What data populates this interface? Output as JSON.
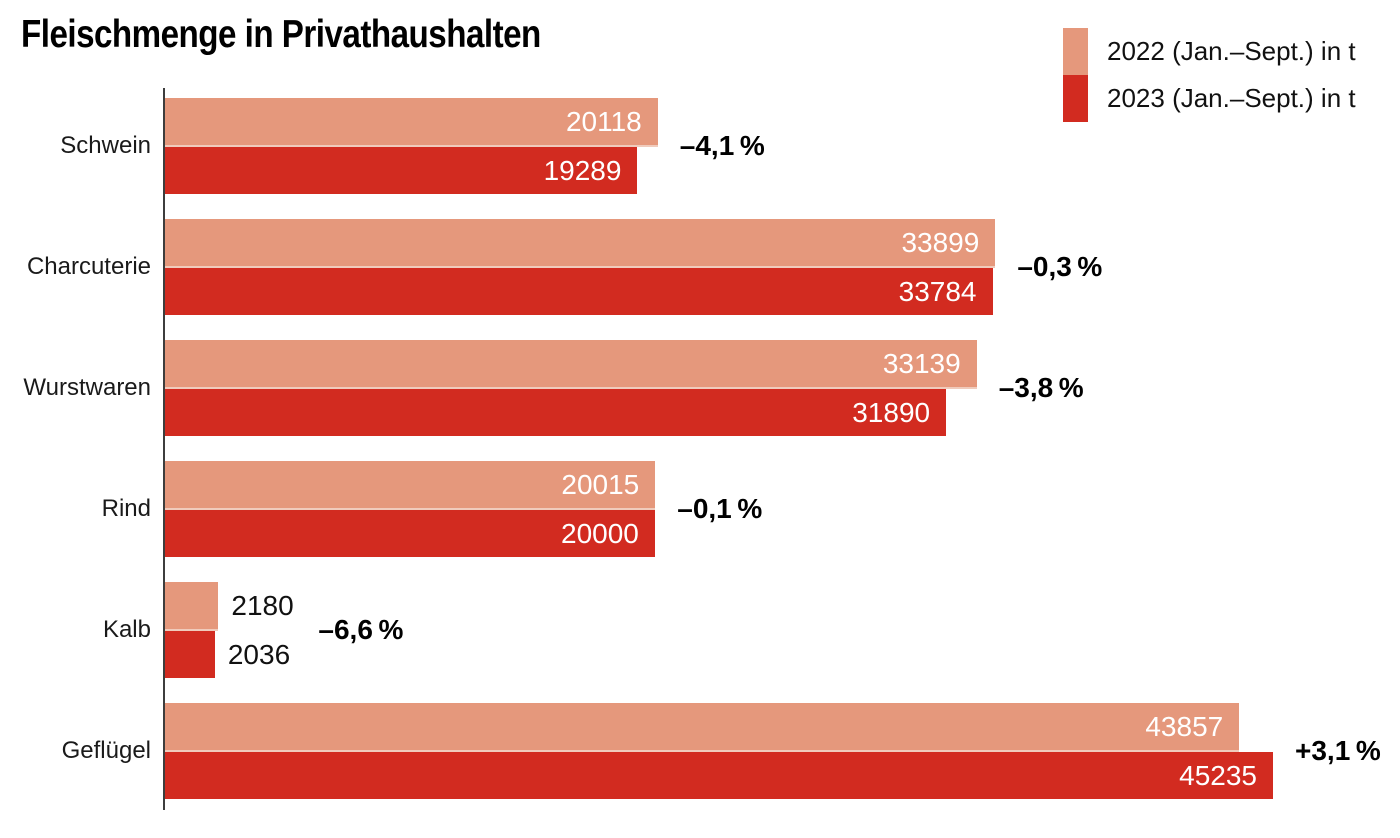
{
  "title": "Fleischmenge in Privathaushalten",
  "legend": {
    "items": [
      {
        "label": "2022 (Jan.–Sept.) in t",
        "color": "#E5987C"
      },
      {
        "label": "2023 (Jan.–Sept.) in t",
        "color": "#D22B20"
      }
    ]
  },
  "colors": {
    "bar_2022": "#E5987C",
    "bar_2023": "#D22B20",
    "bar_divider": "#F0CBBC",
    "axis": "#3d3d3d",
    "value_inside": "#ffffff",
    "value_outside": "#111111",
    "percent_text": "#000000"
  },
  "chart_data": {
    "type": "bar",
    "orientation": "horizontal",
    "title": "Fleischmenge in Privathaushalten",
    "categories": [
      "Schwein",
      "Charcuterie",
      "Wurstwaren",
      "Rind",
      "Kalb",
      "Geflügel"
    ],
    "series": [
      {
        "name": "2022 (Jan.–Sept.) in t",
        "values": [
          20118,
          33899,
          33139,
          20015,
          2180,
          43857
        ]
      },
      {
        "name": "2023 (Jan.–Sept.) in t",
        "values": [
          19289,
          33784,
          31890,
          20000,
          2036,
          45235
        ]
      }
    ],
    "change_labels": [
      "–4,1 %",
      "–0,3 %",
      "–3,8 %",
      "–0,1 %",
      "–6,6 %",
      "+3,1 %"
    ],
    "value_label_position": [
      "inside",
      "inside",
      "inside",
      "inside",
      "outside",
      "inside"
    ],
    "xlim": [
      0,
      45235
    ],
    "grid": false,
    "legend_position": "top-right"
  }
}
